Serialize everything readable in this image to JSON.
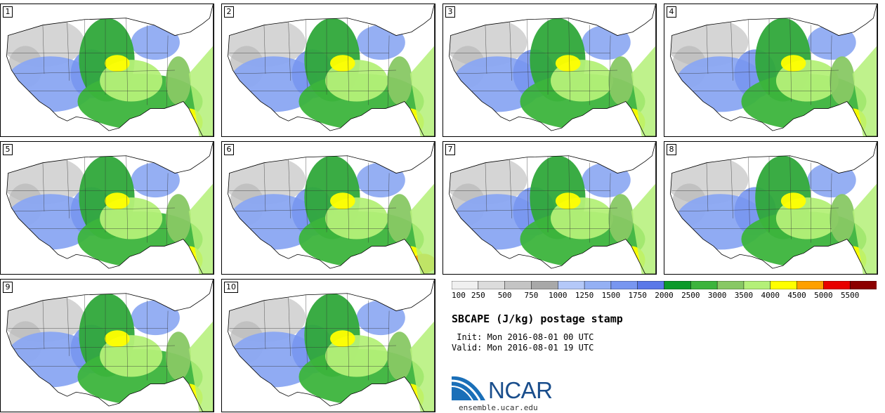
{
  "panels": [
    {
      "label": "1"
    },
    {
      "label": "2"
    },
    {
      "label": "3"
    },
    {
      "label": "4"
    },
    {
      "label": "5"
    },
    {
      "label": "6"
    },
    {
      "label": "7"
    },
    {
      "label": "8"
    },
    {
      "label": "9"
    },
    {
      "label": "10"
    }
  ],
  "colorbar": {
    "levels": [
      "100",
      "250",
      "500",
      "750",
      "1000",
      "1250",
      "1500",
      "1750",
      "2000",
      "2500",
      "3000",
      "3500",
      "4000",
      "4500",
      "5000",
      "5500"
    ],
    "colors": [
      "#f0f0f0",
      "#dcdcdc",
      "#c4c4c4",
      "#a8a8a8",
      "#b4c8f8",
      "#94b0f4",
      "#7896f0",
      "#5a78e8",
      "#0a9a2a",
      "#3cb43c",
      "#88c864",
      "#b4f078",
      "#ffff00",
      "#ffa000",
      "#e80000",
      "#8c0000"
    ]
  },
  "title": "SBCAPE (J/kg) postage stamp",
  "init": " Init: Mon 2016-08-01 00 UTC",
  "valid": "Valid: Mon 2016-08-01 19 UTC",
  "logo": {
    "text": "NCAR"
  },
  "site": "ensemble.ucar.edu"
}
